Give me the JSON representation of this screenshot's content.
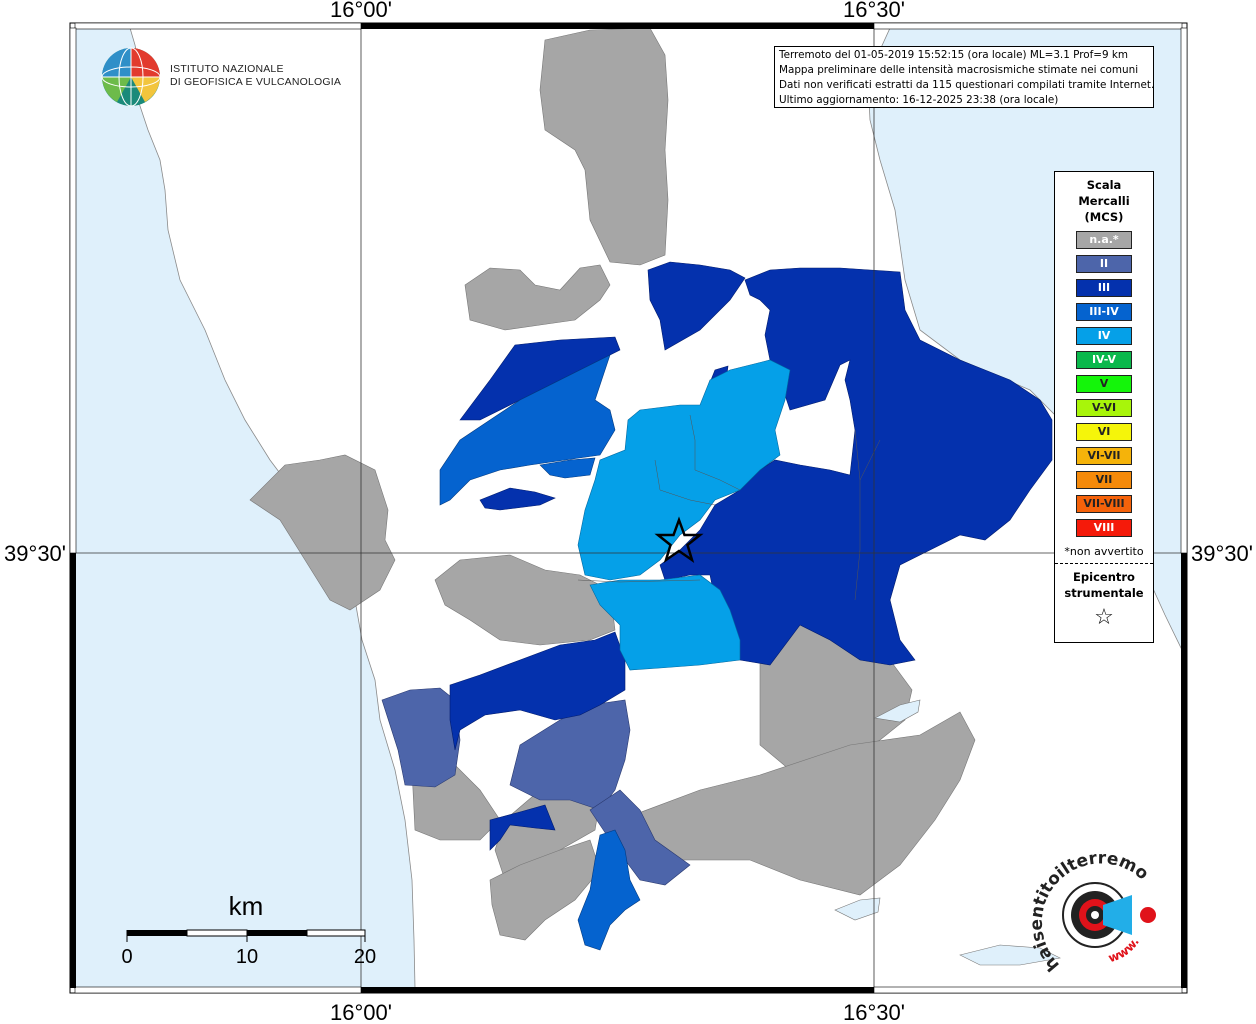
{
  "info": {
    "line1": "Terremoto del 01-05-2019 15:52:15 (ora locale) ML=3.1 Prof=9 km",
    "line2": "Mappa preliminare delle intensità macrosismiche stimate nei comuni",
    "line3": "Dati non verificati estratti da 115 questionari compilati tramite Internet.",
    "line4": "Ultimo aggiornamento: 16-12-2025 23:38 (ora locale)"
  },
  "logo": {
    "line1": "ISTITUTO NAZIONALE",
    "line2": "DI GEOFISICA E VULCANOLOGIA"
  },
  "coords": {
    "lon_left": "16°00'",
    "lon_right": "16°30'",
    "lat": "39°30'"
  },
  "legend": {
    "title1": "Scala",
    "title2": "Mercalli",
    "title3": "(MCS)",
    "items": [
      {
        "label": "n.a.*",
        "color": "#a6a6a6",
        "text_color": "#ffffff"
      },
      {
        "label": "II",
        "color": "#4d65aa",
        "text_color": "#ffffff"
      },
      {
        "label": "III",
        "color": "#0431ad",
        "text_color": "#ffffff"
      },
      {
        "label": "III-IV",
        "color": "#0563cf",
        "text_color": "#ffffff"
      },
      {
        "label": "IV",
        "color": "#05a0e8",
        "text_color": "#ffffff"
      },
      {
        "label": "IV-V",
        "color": "#0ab84c",
        "text_color": "#ffffff"
      },
      {
        "label": "V",
        "color": "#14f50a",
        "text_color": "#222222"
      },
      {
        "label": "V-VI",
        "color": "#a8f50a",
        "text_color": "#222222"
      },
      {
        "label": "VI",
        "color": "#f5f50a",
        "text_color": "#222222"
      },
      {
        "label": "VI-VII",
        "color": "#f5b30a",
        "text_color": "#222222"
      },
      {
        "label": "VII",
        "color": "#f58a0a",
        "text_color": "#222222"
      },
      {
        "label": "VII-VIII",
        "color": "#f5620a",
        "text_color": "#222222"
      },
      {
        "label": "VIII",
        "color": "#f51a0a",
        "text_color": "#ffffff"
      }
    ],
    "note": "*non avvertito",
    "epicenter1": "Epicentro",
    "epicenter2": "strumentale",
    "star": "☆"
  },
  "scale_bar": {
    "unit": "km",
    "ticks": [
      "0",
      "10",
      "20"
    ]
  },
  "hsit_logo": {
    "text": "haisentitoilterremoto.it",
    "www": "www."
  },
  "colors": {
    "sea": "#dff0fb",
    "land": "#ffffff",
    "na": "#a6a6a6",
    "ii": "#4d65aa",
    "iii": "#0431ad",
    "iii_iv": "#0563cf",
    "iv": "#05a0e8"
  }
}
